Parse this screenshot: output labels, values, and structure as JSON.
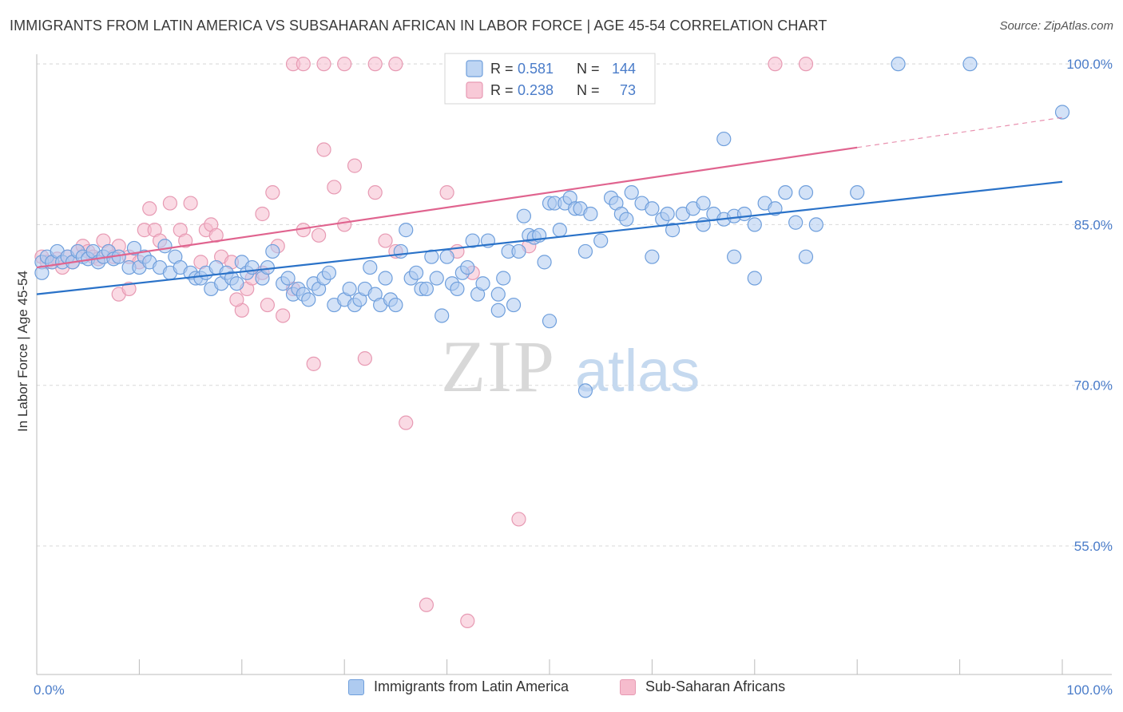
{
  "title": "IMMIGRANTS FROM LATIN AMERICA VS SUBSAHARAN AFRICAN IN LABOR FORCE | AGE 45-54 CORRELATION CHART",
  "source": "Source: ZipAtlas.com",
  "watermark": {
    "zip": "ZIP",
    "atlas": "atlas"
  },
  "colors": {
    "blue_fill": "#aecbf0",
    "blue_stroke": "#6f9fdc",
    "blue_line": "#2a72c8",
    "pink_fill": "#f6bccd",
    "pink_stroke": "#e79ab3",
    "pink_line": "#e0648f",
    "tick_label": "#4a7cc9",
    "grid": "#d9d9d9"
  },
  "legend": {
    "row1": {
      "r_label": "R =",
      "r_value": "0.581",
      "n_label": "N =",
      "n_value": "144"
    },
    "row2": {
      "r_label": "R =",
      "r_value": "0.238",
      "n_label": "N =",
      "n_value": "73"
    }
  },
  "chart_data": {
    "type": "scatter",
    "title": "IMMIGRANTS FROM LATIN AMERICA VS SUBSAHARAN AFRICAN IN LABOR FORCE | AGE 45-54 CORRELATION CHART",
    "xlabel": "",
    "ylabel": "In Labor Force | Age 45-54",
    "xlim": [
      0,
      100
    ],
    "ylim": [
      43,
      101.5
    ],
    "x_tick_labels": [
      "0.0%",
      "100.0%"
    ],
    "y_ticks": [
      55,
      70,
      85,
      100
    ],
    "y_tick_labels": [
      "55.0%",
      "70.0%",
      "85.0%",
      "100.0%"
    ],
    "grid": "horizontal dashed",
    "legend_position": "top-center",
    "series": [
      {
        "name": "Immigrants from Latin America",
        "r": 0.581,
        "n": 144,
        "trend": {
          "x": [
            0,
            100
          ],
          "y": [
            78.5,
            89.0
          ],
          "dashed_from": null
        },
        "points": [
          [
            0.5,
            81.5
          ],
          [
            0.5,
            80.5
          ],
          [
            1,
            82
          ],
          [
            1.5,
            81.5
          ],
          [
            2,
            82.5
          ],
          [
            2.5,
            81.5
          ],
          [
            3,
            82
          ],
          [
            3.5,
            81.5
          ],
          [
            4,
            82.5
          ],
          [
            4.5,
            82
          ],
          [
            5,
            81.8
          ],
          [
            5.5,
            82.5
          ],
          [
            6,
            81.5
          ],
          [
            6.5,
            82
          ],
          [
            7,
            82.5
          ],
          [
            7.5,
            81.8
          ],
          [
            8,
            82
          ],
          [
            9,
            81
          ],
          [
            9.5,
            82.8
          ],
          [
            10,
            81
          ],
          [
            10.5,
            82
          ],
          [
            11,
            81.5
          ],
          [
            12,
            81
          ],
          [
            12.5,
            83
          ],
          [
            13,
            80.5
          ],
          [
            13.5,
            82
          ],
          [
            14,
            81
          ],
          [
            15,
            80.5
          ],
          [
            15.5,
            80
          ],
          [
            16,
            80
          ],
          [
            16.5,
            80.5
          ],
          [
            17,
            79
          ],
          [
            17.5,
            81
          ],
          [
            18,
            79.5
          ],
          [
            18.5,
            80.5
          ],
          [
            19,
            80
          ],
          [
            19.5,
            79.5
          ],
          [
            20,
            81.5
          ],
          [
            20.5,
            80.5
          ],
          [
            21,
            81
          ],
          [
            22,
            80
          ],
          [
            22.5,
            81
          ],
          [
            23,
            82.5
          ],
          [
            24,
            79.5
          ],
          [
            24.5,
            80
          ],
          [
            25,
            78.5
          ],
          [
            25.5,
            79
          ],
          [
            26,
            78.5
          ],
          [
            26.5,
            78
          ],
          [
            27,
            79.5
          ],
          [
            27.5,
            79
          ],
          [
            28,
            80
          ],
          [
            28.5,
            80.5
          ],
          [
            29,
            77.5
          ],
          [
            30,
            78
          ],
          [
            30.5,
            79
          ],
          [
            31,
            77.5
          ],
          [
            31.5,
            78
          ],
          [
            32,
            79
          ],
          [
            32.5,
            81
          ],
          [
            33,
            78.5
          ],
          [
            33.5,
            77.5
          ],
          [
            34,
            80
          ],
          [
            34.5,
            78
          ],
          [
            35,
            77.5
          ],
          [
            35.5,
            82.5
          ],
          [
            36,
            84.5
          ],
          [
            36.5,
            80
          ],
          [
            37,
            80.5
          ],
          [
            37.5,
            79
          ],
          [
            38,
            79
          ],
          [
            38.5,
            82
          ],
          [
            39,
            80
          ],
          [
            39.5,
            76.5
          ],
          [
            40,
            82
          ],
          [
            40.5,
            79.5
          ],
          [
            41,
            79
          ],
          [
            41.5,
            80.5
          ],
          [
            42,
            81
          ],
          [
            42.5,
            83.5
          ],
          [
            43,
            78.5
          ],
          [
            43.5,
            79.5
          ],
          [
            44,
            83.5
          ],
          [
            45,
            78.5
          ],
          [
            45.5,
            80
          ],
          [
            46,
            82.5
          ],
          [
            46.5,
            77.5
          ],
          [
            47,
            82.5
          ],
          [
            47.5,
            85.8
          ],
          [
            48,
            84
          ],
          [
            48.5,
            83.8
          ],
          [
            49,
            84
          ],
          [
            49.5,
            81.5
          ],
          [
            50,
            87
          ],
          [
            50.5,
            87
          ],
          [
            51,
            84.5
          ],
          [
            51.5,
            87
          ],
          [
            52,
            87.5
          ],
          [
            52.5,
            86.5
          ],
          [
            53,
            86.5
          ],
          [
            53.5,
            82.5
          ],
          [
            54,
            86
          ],
          [
            55,
            83.5
          ],
          [
            56,
            87.5
          ],
          [
            56.5,
            87
          ],
          [
            57,
            86
          ],
          [
            57.5,
            85.5
          ],
          [
            58,
            88
          ],
          [
            59,
            87
          ],
          [
            60,
            86.5
          ],
          [
            61,
            85.5
          ],
          [
            61.5,
            86
          ],
          [
            62,
            84.5
          ],
          [
            63,
            86
          ],
          [
            64,
            86.5
          ],
          [
            65,
            87
          ],
          [
            66,
            86
          ],
          [
            67,
            85.5
          ],
          [
            68,
            85.8
          ],
          [
            69,
            86
          ],
          [
            70,
            85
          ],
          [
            71,
            87
          ],
          [
            72,
            86.5
          ],
          [
            73,
            88
          ],
          [
            74,
            85.2
          ],
          [
            75,
            88
          ],
          [
            76,
            85
          ],
          [
            53.5,
            69.5
          ],
          [
            67,
            93
          ],
          [
            84,
            100
          ],
          [
            91,
            100
          ],
          [
            100,
            95.5
          ],
          [
            60,
            82
          ],
          [
            50,
            76
          ],
          [
            45,
            77
          ],
          [
            70,
            80
          ],
          [
            75,
            82
          ],
          [
            80,
            88
          ],
          [
            68,
            82
          ],
          [
            65,
            85
          ]
        ]
      },
      {
        "name": "Sub-Saharan Africans",
        "r": 0.238,
        "n": 73,
        "trend": {
          "x": [
            0,
            100
          ],
          "y": [
            81.0,
            95.0
          ],
          "dashed_from": 80
        },
        "points": [
          [
            0.5,
            82
          ],
          [
            1,
            81.5
          ],
          [
            1.5,
            81.5
          ],
          [
            2,
            81.8
          ],
          [
            2.5,
            81
          ],
          [
            3,
            82
          ],
          [
            3.5,
            81.5
          ],
          [
            4,
            82.5
          ],
          [
            4.5,
            83
          ],
          [
            5,
            82.5
          ],
          [
            5.5,
            82
          ],
          [
            6,
            81.8
          ],
          [
            6.5,
            83.5
          ],
          [
            7,
            82.5
          ],
          [
            7.5,
            82
          ],
          [
            8,
            83
          ],
          [
            9,
            82
          ],
          [
            10,
            81.5
          ],
          [
            10.5,
            84.5
          ],
          [
            11,
            86.5
          ],
          [
            11.5,
            84.5
          ],
          [
            12,
            83.5
          ],
          [
            13,
            87
          ],
          [
            14,
            84.5
          ],
          [
            14.5,
            83.5
          ],
          [
            15,
            87
          ],
          [
            16,
            81.5
          ],
          [
            16.5,
            84.5
          ],
          [
            17,
            85
          ],
          [
            17.5,
            84
          ],
          [
            18,
            82
          ],
          [
            19,
            81.5
          ],
          [
            20,
            77
          ],
          [
            20.5,
            79
          ],
          [
            21,
            80
          ],
          [
            22,
            86
          ],
          [
            22.5,
            77.5
          ],
          [
            23,
            88
          ],
          [
            23.5,
            83
          ],
          [
            24,
            76.5
          ],
          [
            25,
            79
          ],
          [
            26,
            84.5
          ],
          [
            27,
            72
          ],
          [
            27.5,
            84
          ],
          [
            28,
            92
          ],
          [
            29,
            88.5
          ],
          [
            30,
            85
          ],
          [
            31,
            90.5
          ],
          [
            32,
            72.5
          ],
          [
            33,
            88
          ],
          [
            34,
            83.5
          ],
          [
            35,
            82.5
          ],
          [
            36,
            66.5
          ],
          [
            38,
            49.5
          ],
          [
            40,
            88
          ],
          [
            41,
            82.5
          ],
          [
            42,
            48
          ],
          [
            42.5,
            80.5
          ],
          [
            47,
            57.5
          ],
          [
            48,
            83
          ],
          [
            8,
            78.5
          ],
          [
            9,
            79
          ],
          [
            19.5,
            78
          ],
          [
            22,
            80.5
          ],
          [
            25,
            100
          ],
          [
            26,
            100
          ],
          [
            28,
            100
          ],
          [
            30,
            100
          ],
          [
            33,
            100
          ],
          [
            35,
            100
          ],
          [
            53,
            100
          ],
          [
            72,
            100
          ],
          [
            75,
            100
          ]
        ]
      }
    ]
  },
  "bottom_legend": [
    "Immigrants from Latin America",
    "Sub-Saharan Africans"
  ]
}
